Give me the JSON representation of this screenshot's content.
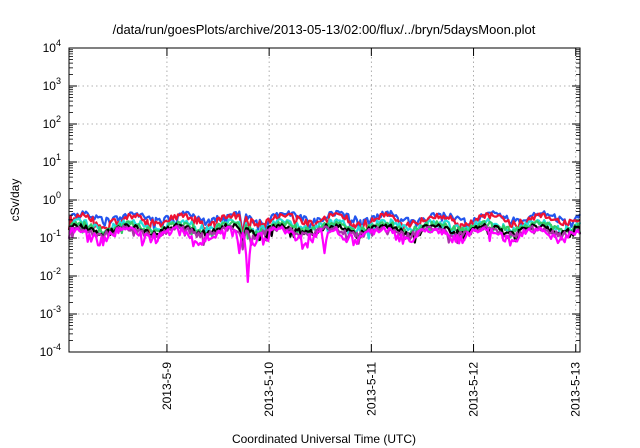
{
  "chart_data": {
    "type": "line",
    "title": "/data/run/goesPlots/archive/2013-05-13/02:00/flux/../bryn/5daysMoon.plot",
    "xlabel": "Coordinated Universal Time (UTC)",
    "ylabel": "cSv/day",
    "yscale": "log",
    "ylim": [
      0.0001,
      10000
    ],
    "xlim": [
      "2013-05-08 01:00",
      "2013-05-13 01:00"
    ],
    "grid": true,
    "x_ticks": [
      "2013-5-9",
      "2013-5-10",
      "2013-5-11",
      "2013-5-12",
      "2013-5-13"
    ],
    "y_ticks": [
      {
        "base": "10",
        "exp": "-4"
      },
      {
        "base": "10",
        "exp": "-3"
      },
      {
        "base": "10",
        "exp": "-2"
      },
      {
        "base": "10",
        "exp": "-1"
      },
      {
        "base": "10",
        "exp": "0"
      },
      {
        "base": "10",
        "exp": "1"
      },
      {
        "base": "10",
        "exp": "2"
      },
      {
        "base": "10",
        "exp": "3"
      },
      {
        "base": "10",
        "exp": "4"
      }
    ],
    "series": [
      {
        "color": "#2255ee",
        "level": 0.36,
        "swing": 0.16,
        "dips": [
          {
            "x": "2013-05-09 18:00",
            "y": 0.12
          }
        ]
      },
      {
        "color": "#ee1133",
        "level": 0.31,
        "swing": 0.15,
        "dips": [
          {
            "x": "2013-05-09 18:00",
            "y": 0.11
          }
        ]
      },
      {
        "color": "#22dddd",
        "level": 0.22,
        "swing": 0.1,
        "dips": [
          {
            "x": "2013-05-09 18:00",
            "y": 0.08
          }
        ]
      },
      {
        "color": "#33cc66",
        "level": 0.2,
        "swing": 0.08,
        "dips": [
          {
            "x": "2013-05-09 18:00",
            "y": 0.07
          }
        ]
      },
      {
        "color": "#000000",
        "level": 0.17,
        "swing": 0.07,
        "dips": [
          {
            "x": "2013-05-09 18:00",
            "y": 0.06
          }
        ]
      },
      {
        "color": "#aa33aa",
        "level": 0.15,
        "swing": 0.06,
        "dips": [
          {
            "x": "2013-05-09 18:00",
            "y": 0.05
          }
        ]
      },
      {
        "color": "#ff00ff",
        "level": 0.13,
        "swing": 0.07,
        "dips": [
          {
            "x": "2013-05-09 17:00",
            "y": 0.04
          },
          {
            "x": "2013-05-09 19:00",
            "y": 0.007
          },
          {
            "x": "2013-05-10 13:00",
            "y": 0.04
          }
        ]
      }
    ]
  }
}
